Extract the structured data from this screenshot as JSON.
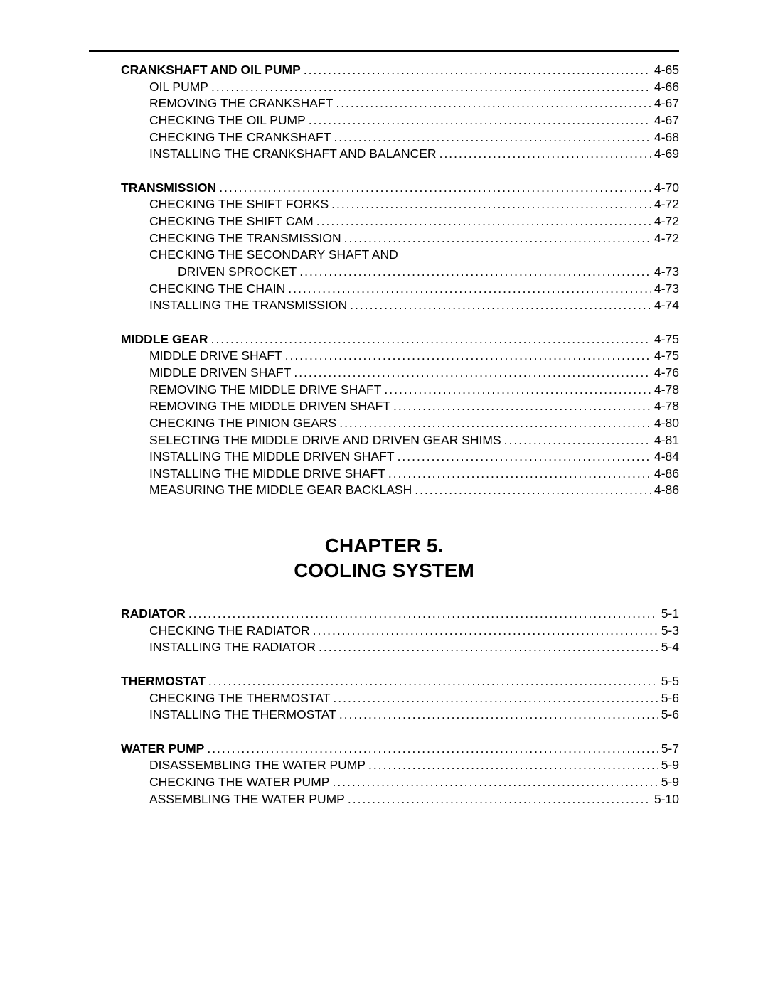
{
  "sections": [
    {
      "heading": {
        "label": "CRANKSHAFT AND OIL PUMP",
        "page": "4-65"
      },
      "items": [
        {
          "label": "OIL PUMP",
          "page": "4-66"
        },
        {
          "label": "REMOVING THE CRANKSHAFT",
          "page": "4-67"
        },
        {
          "label": "CHECKING THE OIL PUMP",
          "page": "4-67"
        },
        {
          "label": "CHECKING THE CRANKSHAFT",
          "page": "4-68"
        },
        {
          "label": "INSTALLING THE CRANKSHAFT AND BALANCER",
          "page": "4-69"
        }
      ]
    },
    {
      "heading": {
        "label": "TRANSMISSION",
        "page": "4-70"
      },
      "items": [
        {
          "label": "CHECKING THE SHIFT FORKS",
          "page": "4-72"
        },
        {
          "label": "CHECKING THE SHIFT CAM",
          "page": "4-72"
        },
        {
          "label": "CHECKING THE TRANSMISSION",
          "page": "4-72"
        },
        {
          "label_cont_1": "CHECKING THE SECONDARY SHAFT AND",
          "label_cont_2": "DRIVEN SPROCKET",
          "page": "4-73",
          "multiline": true
        },
        {
          "label": "CHECKING THE CHAIN",
          "page": "4-73"
        },
        {
          "label": "INSTALLING THE TRANSMISSION",
          "page": "4-74"
        }
      ]
    },
    {
      "heading": {
        "label": "MIDDLE GEAR",
        "page": "4-75"
      },
      "items": [
        {
          "label": "MIDDLE DRIVE SHAFT",
          "page": "4-75"
        },
        {
          "label": "MIDDLE DRIVEN SHAFT",
          "page": "4-76"
        },
        {
          "label": "REMOVING THE MIDDLE DRIVE SHAFT",
          "page": "4-78"
        },
        {
          "label": "REMOVING THE MIDDLE DRIVEN SHAFT",
          "page": "4-78"
        },
        {
          "label": "CHECKING THE PINION GEARS",
          "page": "4-80"
        },
        {
          "label": "SELECTING THE MIDDLE DRIVE AND DRIVEN GEAR SHIMS",
          "page": "4-81"
        },
        {
          "label": "INSTALLING THE MIDDLE DRIVEN SHAFT",
          "page": "4-84"
        },
        {
          "label": "INSTALLING THE MIDDLE DRIVE SHAFT",
          "page": "4-86"
        },
        {
          "label": "MEASURING THE MIDDLE GEAR BACKLASH",
          "page": "4-86"
        }
      ]
    }
  ],
  "chapter_heading_line1": "CHAPTER 5.",
  "chapter_heading_line2": "COOLING SYSTEM",
  "chapter5_sections": [
    {
      "heading": {
        "label": "RADIATOR",
        "page": "5-1"
      },
      "items": [
        {
          "label": "CHECKING THE RADIATOR",
          "page": "5-3"
        },
        {
          "label": "INSTALLING THE RADIATOR",
          "page": "5-4"
        }
      ]
    },
    {
      "heading": {
        "label": "THERMOSTAT",
        "page": "5-5"
      },
      "items": [
        {
          "label": "CHECKING THE THERMOSTAT",
          "page": "5-6"
        },
        {
          "label": "INSTALLING THE THERMOSTAT",
          "page": "5-6"
        }
      ]
    },
    {
      "heading": {
        "label": "WATER PUMP",
        "page": "5-7"
      },
      "items": [
        {
          "label": "DISASSEMBLING THE WATER PUMP",
          "page": "5-9"
        },
        {
          "label": "CHECKING THE WATER PUMP",
          "page": "5-9"
        },
        {
          "label": "ASSEMBLING THE WATER PUMP",
          "page": "5-10"
        }
      ]
    }
  ]
}
